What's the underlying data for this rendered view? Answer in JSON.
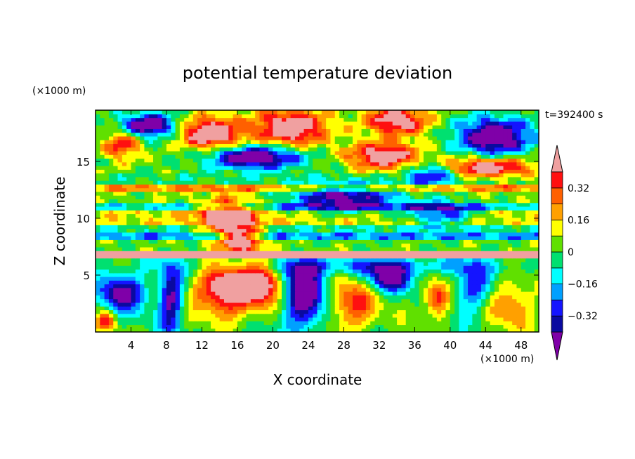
{
  "chart_data": {
    "type": "heatmap",
    "title": "potential temperature deviation",
    "xlabel": "X coordinate",
    "ylabel": "Z coordinate",
    "x_unit": "(×1000 m)",
    "y_unit": "(×1000 m)",
    "time_label": "t=392400 s",
    "xlim": [
      0,
      50
    ],
    "ylim": [
      0,
      19.5
    ],
    "x_ticks": [
      4,
      8,
      12,
      16,
      20,
      24,
      28,
      32,
      36,
      40,
      44,
      48
    ],
    "y_ticks": [
      5,
      10,
      15
    ],
    "colorbar": {
      "levels": [
        -0.4,
        -0.32,
        -0.24,
        -0.16,
        -0.08,
        0,
        0.08,
        0.16,
        0.24,
        0.32,
        0.4
      ],
      "labeled_levels": [
        -0.32,
        -0.16,
        0,
        0.16,
        0.32
      ],
      "colors": [
        "#7f00a8",
        "#0a0aa0",
        "#1414ff",
        "#00a0ff",
        "#00ffff",
        "#00e070",
        "#60e000",
        "#ffff00",
        "#ffa000",
        "#ff6000",
        "#ff1010",
        "#f0a0a0"
      ],
      "extend": "both"
    }
  }
}
